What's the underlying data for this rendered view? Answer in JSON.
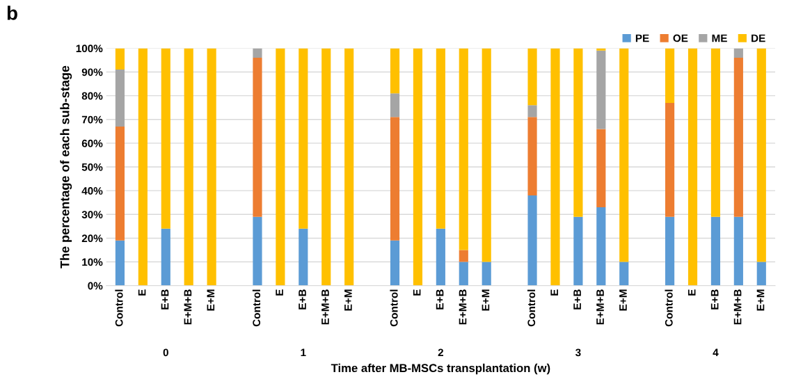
{
  "chart_data": {
    "type": "bar",
    "stacked": true,
    "title": "b",
    "xlabel": "Time after MB-MSCs transplantation (w)",
    "ylabel": "The percentage of each sub-stage",
    "categories": [
      "Control",
      "E",
      "E+B",
      "E+M+B",
      "E+M",
      null,
      "Control",
      "E",
      "E+B",
      "E+M+B",
      "E+M",
      null,
      "Control",
      "E",
      "E+B",
      "E+M+B",
      "E+M",
      null,
      "Control",
      "E",
      "E+B",
      "E+M+B",
      "E+M",
      null,
      "Control",
      "E",
      "E+B",
      "E+M+B",
      "E+M"
    ],
    "series": [
      {
        "name": "PE",
        "color": "#5b9bd5",
        "values": [
          19,
          0,
          24,
          0,
          0,
          null,
          29,
          0,
          24,
          0,
          0,
          null,
          19,
          0,
          24,
          10,
          10,
          null,
          38,
          0,
          29,
          33,
          10,
          null,
          29,
          0,
          29,
          29,
          10
        ]
      },
      {
        "name": "OE",
        "color": "#ed7d31",
        "values": [
          48,
          0,
          0,
          0,
          0,
          null,
          67,
          0,
          0,
          0,
          0,
          null,
          52,
          0,
          0,
          5,
          0,
          null,
          33,
          0,
          0,
          33,
          0,
          null,
          48,
          0,
          0,
          67,
          0
        ]
      },
      {
        "name": "ME",
        "color": "#a5a5a5",
        "values": [
          24,
          0,
          0,
          0,
          0,
          null,
          4,
          0,
          0,
          0,
          0,
          null,
          10,
          0,
          0,
          0,
          0,
          null,
          5,
          0,
          0,
          33,
          0,
          null,
          0,
          0,
          0,
          4,
          0
        ]
      },
      {
        "name": "DE",
        "color": "#ffc000",
        "values": [
          9,
          100,
          76,
          100,
          100,
          null,
          0,
          100,
          76,
          100,
          100,
          null,
          19,
          100,
          76,
          85,
          90,
          null,
          24,
          100,
          71,
          1,
          90,
          null,
          23,
          100,
          71,
          0,
          90
        ]
      }
    ],
    "annotations": [
      "0",
      "1",
      "2",
      "3",
      "4"
    ],
    "ylim": [
      0,
      100
    ],
    "yticks": [
      {
        "value": 0,
        "label": "0%"
      },
      {
        "value": 10,
        "label": "10%"
      },
      {
        "value": 20,
        "label": "20%"
      },
      {
        "value": 30,
        "label": "30%"
      },
      {
        "value": 40,
        "label": "40%"
      },
      {
        "value": 50,
        "label": "50%"
      },
      {
        "value": 60,
        "label": "60%"
      },
      {
        "value": 70,
        "label": "70%"
      },
      {
        "value": 80,
        "label": "80%"
      },
      {
        "value": 90,
        "label": "90%"
      },
      {
        "value": 100,
        "label": "100%"
      }
    ],
    "grid": "y",
    "legend": "top right"
  }
}
